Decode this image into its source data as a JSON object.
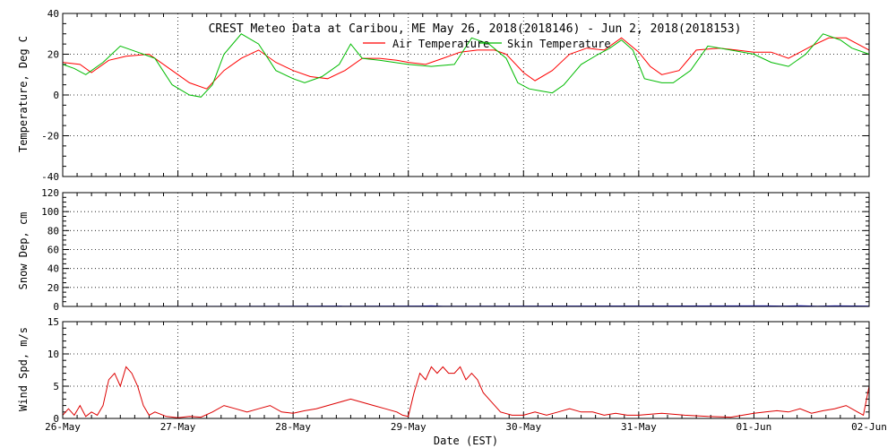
{
  "chart_data": [
    {
      "type": "line",
      "title": "CREST Meteo Data at Caribou, ME   May 26, 2018(2018146) - Jun  2, 2018(2018153)",
      "ylabel": "Temperature, Deg C",
      "xlabel": "",
      "ylim": [
        -40,
        40
      ],
      "xlim": [
        0,
        7
      ],
      "y_ticks": [
        "-40",
        "-20",
        "0",
        "20",
        "40"
      ],
      "grid": true,
      "legend": "top-center",
      "series": [
        {
          "name": "Air Temperature",
          "color": "#ff0000",
          "x": [
            0,
            0.15,
            0.25,
            0.4,
            0.55,
            0.75,
            0.95,
            1.1,
            1.25,
            1.4,
            1.55,
            1.7,
            1.85,
            2.0,
            2.15,
            2.3,
            2.45,
            2.6,
            2.75,
            2.9,
            3.0,
            3.15,
            3.3,
            3.45,
            3.6,
            3.75,
            3.85,
            4.0,
            4.1,
            4.25,
            4.4,
            4.55,
            4.7,
            4.85,
            5.0,
            5.1,
            5.2,
            5.35,
            5.5,
            5.7,
            5.85,
            6.0,
            6.15,
            6.3,
            6.5,
            6.65,
            6.8,
            7.0
          ],
          "y": [
            16,
            15,
            11,
            17,
            19,
            20,
            12,
            6,
            3,
            12,
            18,
            22,
            16,
            12,
            9,
            8,
            12,
            18,
            18,
            17,
            16,
            15,
            18,
            21,
            22,
            22,
            20,
            11,
            7,
            12,
            20,
            23,
            22,
            28,
            21,
            14,
            10,
            12,
            22,
            23,
            22,
            21,
            21,
            18,
            24,
            28,
            28,
            22
          ]
        },
        {
          "name": "Skin Temperature",
          "color": "#00bb00",
          "x": [
            0,
            0.1,
            0.2,
            0.35,
            0.5,
            0.65,
            0.8,
            0.95,
            1.1,
            1.2,
            1.3,
            1.4,
            1.55,
            1.7,
            1.85,
            2.0,
            2.1,
            2.25,
            2.4,
            2.5,
            2.6,
            2.75,
            3.0,
            3.2,
            3.4,
            3.55,
            3.7,
            3.85,
            3.95,
            4.05,
            4.15,
            4.25,
            4.35,
            4.5,
            4.65,
            4.75,
            4.85,
            4.95,
            5.05,
            5.2,
            5.3,
            5.45,
            5.6,
            5.8,
            6.0,
            6.15,
            6.3,
            6.45,
            6.6,
            6.75,
            6.85,
            7.0
          ],
          "y": [
            15,
            13,
            10,
            16,
            24,
            21,
            18,
            5,
            0,
            -1,
            5,
            20,
            30,
            25,
            12,
            8,
            6,
            9,
            15,
            25,
            18,
            17,
            15,
            14,
            15,
            28,
            25,
            18,
            6,
            3,
            2,
            1,
            5,
            15,
            20,
            23,
            27,
            22,
            8,
            6,
            6,
            12,
            24,
            22,
            20,
            16,
            14,
            20,
            30,
            27,
            23,
            20
          ]
        }
      ]
    },
    {
      "type": "line",
      "title": "",
      "ylabel": "Snow Dep, cm",
      "xlabel": "",
      "ylim": [
        0,
        120
      ],
      "xlim": [
        0,
        7
      ],
      "y_ticks": [
        "0",
        "20",
        "40",
        "60",
        "80",
        "100",
        "120"
      ],
      "grid": true,
      "series": [
        {
          "name": "",
          "color": "#0000cc",
          "x": [
            0,
            3.1,
            3.2,
            3.3,
            6.1,
            6.25,
            6.4,
            6.55,
            6.7,
            6.85,
            7.0
          ],
          "y": [
            0,
            0.4,
            0.6,
            0.3,
            0.6,
            0.4,
            0.7,
            0.3,
            0.6,
            0.5,
            0.4
          ]
        }
      ]
    },
    {
      "type": "line",
      "title": "",
      "ylabel": "Wind Spd, m/s",
      "xlabel": "Date (EST)",
      "ylim": [
        0,
        15
      ],
      "xlim": [
        0,
        7
      ],
      "y_ticks": [
        "0",
        "5",
        "10",
        "15"
      ],
      "x_ticks": [
        "26-May",
        "27-May",
        "28-May",
        "29-May",
        "30-May",
        "31-May",
        "01-Jun",
        "02-Jun"
      ],
      "grid": true,
      "series": [
        {
          "name": "",
          "color": "#dd0000",
          "x": [
            0,
            0.05,
            0.1,
            0.15,
            0.2,
            0.25,
            0.3,
            0.35,
            0.4,
            0.45,
            0.5,
            0.55,
            0.6,
            0.65,
            0.7,
            0.75,
            0.8,
            0.9,
            1.0,
            1.1,
            1.2,
            1.3,
            1.4,
            1.5,
            1.6,
            1.7,
            1.8,
            1.9,
            2.0,
            2.1,
            2.2,
            2.3,
            2.4,
            2.5,
            2.6,
            2.7,
            2.8,
            2.9,
            2.95,
            3.0,
            3.05,
            3.1,
            3.15,
            3.2,
            3.25,
            3.3,
            3.35,
            3.4,
            3.45,
            3.5,
            3.55,
            3.6,
            3.65,
            3.7,
            3.75,
            3.8,
            3.9,
            4.0,
            4.1,
            4.2,
            4.3,
            4.4,
            4.5,
            4.6,
            4.7,
            4.8,
            4.9,
            5.0,
            5.2,
            5.4,
            5.6,
            5.8,
            6.0,
            6.1,
            6.2,
            6.3,
            6.4,
            6.5,
            6.6,
            6.7,
            6.8,
            6.9,
            6.95,
            7.0
          ],
          "y": [
            0.5,
            1.5,
            0.5,
            2,
            0.3,
            1,
            0.5,
            2,
            6,
            7,
            5,
            8,
            7,
            5,
            2,
            0.5,
            1,
            0.3,
            0.1,
            0.3,
            0.2,
            1,
            2,
            1.5,
            1,
            1.5,
            2,
            1,
            0.8,
            1.2,
            1.5,
            2,
            2.5,
            3,
            2.5,
            2,
            1.5,
            1,
            0.5,
            0.3,
            4,
            7,
            6,
            8,
            7,
            8,
            7,
            7,
            8,
            6,
            7,
            6,
            4,
            3,
            2,
            1,
            0.5,
            0.5,
            1,
            0.5,
            1,
            1.5,
            1,
            1,
            0.5,
            0.8,
            0.5,
            0.5,
            0.8,
            0.5,
            0.3,
            0.2,
            0.8,
            1,
            1.2,
            1,
            1.5,
            0.8,
            1.2,
            1.5,
            2,
            1,
            0.5,
            5
          ]
        }
      ]
    }
  ]
}
